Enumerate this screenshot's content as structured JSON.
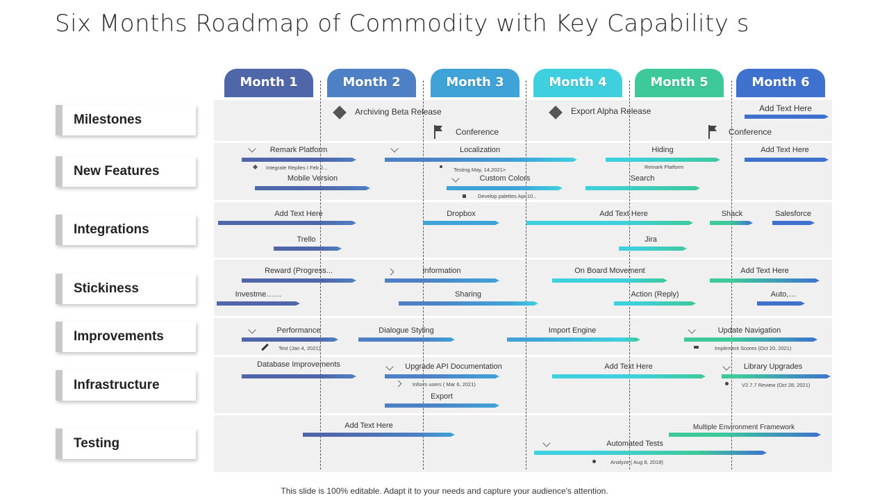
{
  "title": "Six Months Roadmap of Commodity with Key Capability s",
  "footer": "This slide is 100% editable. Adapt it to your needs and capture your audience's attention.",
  "months": [
    {
      "label": "Month 1",
      "color": "#4f66a8"
    },
    {
      "label": "Month 2",
      "color": "#4d80c4"
    },
    {
      "label": "Month 3",
      "color": "#3fa3d8"
    },
    {
      "label": "Month 4",
      "color": "#3fd0e0"
    },
    {
      "label": "Month 5",
      "color": "#3ec99b"
    },
    {
      "label": "Month 6",
      "color": "#3f72cf"
    }
  ],
  "rows": [
    "Milestones",
    "New Features",
    "Integrations",
    "Stickiness",
    "Improvements",
    "Infrastructure",
    "Testing"
  ],
  "milestones": {
    "archiving": "Archiving Beta Release",
    "export_alpha": "Export Alpha Release",
    "conference1": "Conference",
    "conference2": "Conference",
    "add_text": "Add Text Here"
  },
  "tasks": {
    "remark_platform": "Remark Platform",
    "integrate_replies": "Integrate Replies I Feb 2...",
    "mobile_version": "Mobile Version",
    "localization": "Localization",
    "testing_may": "Testing May, 14,2021>",
    "custom_colors": "Custom Colors",
    "develop_palettes": "Develop palettes Apr,10..",
    "hiding": "Hiding",
    "remark_platform_sub": "Remark Platform",
    "search": "Search",
    "nf_add_text": "Add Text Here",
    "int_add_text": "Add Text Here",
    "trello": "Trello",
    "dropbox": "Dropbox",
    "int_add_text2": "Add Text Here",
    "jira": "Jira",
    "shack": "Shack",
    "salesforce": "Salesforce",
    "reward": "Reward (Progress...",
    "investme": "Investme……",
    "information": "Information",
    "sharing": "Sharing",
    "onboard": "On Board Movement",
    "action_reply": "Action (Reply)",
    "st_add_text": "Add Text Here",
    "auto": "Auto,…",
    "performance": "Performance",
    "test_jan": "Test (Jan 4, 2021)",
    "dialogue": "Dialogue Styling",
    "import_engine": "Import Engine",
    "update_nav": "Update Navigation",
    "implement_scores": "Implement Scores (Oct 20, 2021)",
    "db_improvements": "Database Improvements",
    "upgrade_api": "Upgrade API Documentation",
    "inform_users": "Inform users ( Mar 6, 2021)",
    "export": "Export",
    "inf_add_text": "Add Text Here",
    "library_upgrades": "Library Upgrades",
    "v277": "V2.7.7 Review (Oct 28, 2021)",
    "test_add_text": "Add Text Here",
    "multi_env": "Multiple Environment Framework",
    "automated_tests": "Automated Tests",
    "analyze": "Analyze ( Aug 8, 2018)"
  }
}
